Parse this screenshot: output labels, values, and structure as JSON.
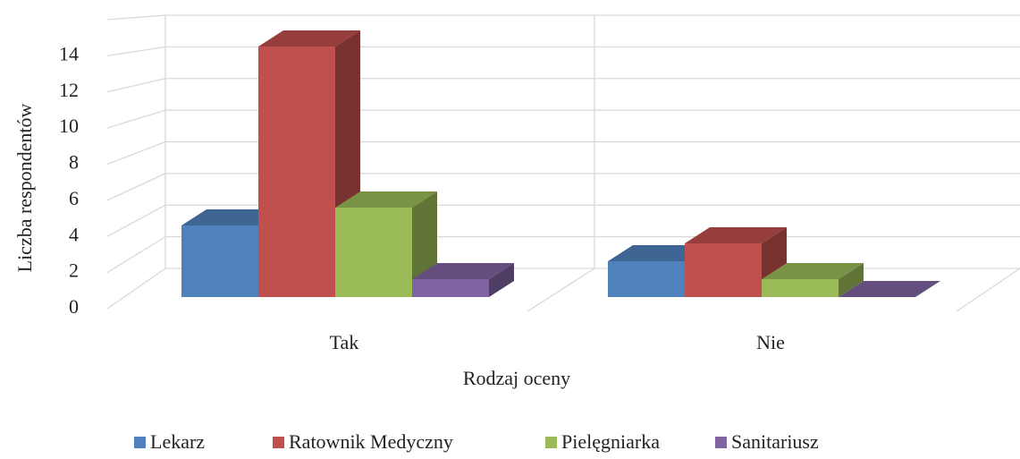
{
  "chart_data": {
    "type": "bar3d",
    "x_label": "Rodzaj oceny",
    "y_label": "Liczba respondentów",
    "categories": [
      "Tak",
      "Nie"
    ],
    "series": [
      {
        "name": "Lekarz",
        "color": "#4f81bd",
        "values": [
          4,
          2
        ]
      },
      {
        "name": "Ratownik Medyczny",
        "color": "#c0504d",
        "values": [
          14,
          3
        ]
      },
      {
        "name": "Pielęgniarka",
        "color": "#9bbb59",
        "values": [
          5,
          1
        ]
      },
      {
        "name": "Sanitariusz",
        "color": "#8064a2",
        "values": [
          1,
          0
        ]
      }
    ],
    "ylim": [
      0,
      16
    ],
    "yticks": [
      0,
      2,
      4,
      6,
      8,
      10,
      12,
      14
    ],
    "grid": true,
    "legend": "bottom"
  }
}
